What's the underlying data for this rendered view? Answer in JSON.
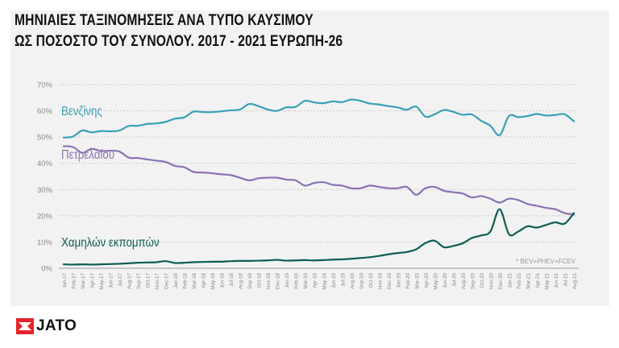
{
  "title_lines": [
    "ΜΗΝΙΑΙΕΣ ΤΑΞΙΝΟΜΗΣΕΙΣ ΑΝΑ ΤΥΠΟ ΚΑΥΣΙΜΟΥ",
    "ΩΣ ΠΟΣΟΣΤΟ ΤΟΥ ΣΥΝΟΛΟΥ. 2017 - 2021 ΕΥΡΩΠΗ-26"
  ],
  "logo": {
    "text": "JATO",
    "color": "#e3262b"
  },
  "chart_data": {
    "type": "line",
    "title": "ΜΗΝΙΑΙΕΣ ΤΑΞΙΝΟΜΗΣΕΙΣ ΑΝΑ ΤΥΠΟ ΚΑΥΣΙΜΟΥ ΩΣ ΠΟΣΟΣΤΟ ΤΟΥ ΣΥΝΟΛΟΥ. 2017 - 2021 ΕΥΡΩΠΗ-26",
    "xlabel": "",
    "ylabel": "",
    "ylim": [
      0,
      70
    ],
    "y_ticks": [
      "0%",
      "10%",
      "20%",
      "30%",
      "40%",
      "50%",
      "60%",
      "70%"
    ],
    "grid": true,
    "footnote": "* BEV+PHEV+FCEV",
    "x": [
      "Jan-17",
      "Feb-17",
      "Mar-17",
      "Apr-17",
      "May-17",
      "Jun-17",
      "Jul-17",
      "Aug-17",
      "Sep-17",
      "Oct-17",
      "Nov-17",
      "Dec-17",
      "Jan-18",
      "Feb-18",
      "Mar-18",
      "Apr-18",
      "May-18",
      "Jun-18",
      "Jul-18",
      "Aug-18",
      "Sep-18",
      "Oct-18",
      "Nov-18",
      "Dec-18",
      "Jan-19",
      "Feb-19",
      "Mar-19",
      "Apr-19",
      "May-19",
      "Jun-19",
      "Jul-19",
      "Aug-19",
      "Sep-19",
      "Oct-19",
      "Nov-19",
      "Dec-19",
      "Jan-20",
      "Feb-20",
      "Mar-20",
      "Apr-20",
      "May-20",
      "Jun-20",
      "Jul-20",
      "Aug-20",
      "Sep-20",
      "Oct-20",
      "Nov-20",
      "Dec-20",
      "Jan-21",
      "Feb-21",
      "Mar-21",
      "Apr-21",
      "May-21",
      "Jun-21",
      "Jul-21",
      "Aug-21"
    ],
    "series": [
      {
        "name": "Βενζίνης",
        "color": "#3aa0b5",
        "values": [
          49.8,
          50.2,
          52.5,
          51.8,
          52.3,
          52.2,
          52.5,
          54.2,
          54.3,
          55.0,
          55.2,
          55.8,
          57.0,
          57.5,
          59.7,
          59.5,
          59.5,
          59.8,
          60.2,
          60.5,
          62.6,
          61.8,
          60.5,
          60.0,
          61.3,
          61.5,
          63.8,
          63.2,
          62.9,
          63.6,
          63.3,
          64.3,
          63.8,
          62.8,
          62.4,
          61.8,
          61.3,
          60.4,
          61.6,
          57.8,
          58.7,
          60.3,
          59.6,
          58.5,
          58.6,
          56.2,
          54.3,
          50.7,
          58.0,
          57.6,
          58.0,
          58.8,
          58.2,
          58.4,
          58.7,
          56.0
        ]
      },
      {
        "name": "Πετρελαίου",
        "color": "#8b72b3",
        "values": [
          46.5,
          46.2,
          44.0,
          45.5,
          44.7,
          44.8,
          44.5,
          42.2,
          42.0,
          41.5,
          41.0,
          40.5,
          39.0,
          38.5,
          36.7,
          36.5,
          36.2,
          35.8,
          35.5,
          34.5,
          33.5,
          34.3,
          34.5,
          34.5,
          33.8,
          33.5,
          31.5,
          32.5,
          32.8,
          31.8,
          31.5,
          30.5,
          30.5,
          31.5,
          31.0,
          30.5,
          30.5,
          31.0,
          28.0,
          30.5,
          31.0,
          29.5,
          29.0,
          28.5,
          27.0,
          27.5,
          26.5,
          25.0,
          26.5,
          26.0,
          24.5,
          23.8,
          23.0,
          22.5,
          21.0,
          20.5
        ]
      },
      {
        "name": "Χαμηλών εκπομπών",
        "color": "#0d5e54",
        "values": [
          1.5,
          1.4,
          1.5,
          1.4,
          1.5,
          1.6,
          1.7,
          1.9,
          2.1,
          2.2,
          2.3,
          2.7,
          2.0,
          2.1,
          2.3,
          2.4,
          2.5,
          2.5,
          2.7,
          2.8,
          2.8,
          2.9,
          3.0,
          3.2,
          2.9,
          3.0,
          3.1,
          3.0,
          3.1,
          3.3,
          3.4,
          3.6,
          3.9,
          4.2,
          4.7,
          5.3,
          5.8,
          6.2,
          7.2,
          9.6,
          10.5,
          8.0,
          8.5,
          9.5,
          11.5,
          12.5,
          14.0,
          22.5,
          13.0,
          14.0,
          16.0,
          15.5,
          16.5,
          17.5,
          17.0,
          21.0
        ]
      }
    ]
  }
}
